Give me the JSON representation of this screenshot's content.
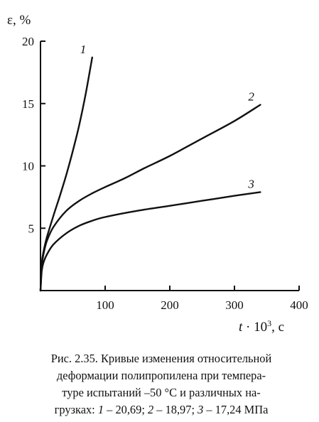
{
  "chart_data": {
    "type": "line",
    "xlabel_prefix": "t",
    "xlabel_rest": " · 10",
    "xlabel_exp": "3",
    "xlabel_unit": ", с",
    "ylabel": "ε, %",
    "xlim": [
      0,
      400
    ],
    "ylim": [
      0,
      20
    ],
    "xticks": [
      100,
      200,
      300,
      400
    ],
    "yticks": [
      5,
      10,
      15,
      20
    ],
    "grid": false,
    "series": [
      {
        "name": "1",
        "x": [
          0,
          2,
          5,
          10,
          20,
          30,
          40,
          50,
          60,
          70,
          80
        ],
        "y": [
          0,
          2.2,
          3.2,
          4.3,
          6.0,
          7.6,
          9.3,
          11.2,
          13.3,
          15.8,
          18.7
        ]
      },
      {
        "name": "2",
        "x": [
          0,
          2,
          5,
          10,
          20,
          40,
          60,
          80,
          100,
          130,
          160,
          200,
          250,
          300,
          340
        ],
        "y": [
          0,
          2.0,
          3.0,
          4.0,
          5.1,
          6.4,
          7.2,
          7.8,
          8.3,
          9.0,
          9.8,
          10.8,
          12.2,
          13.6,
          14.9
        ]
      },
      {
        "name": "3",
        "x": [
          0,
          2,
          5,
          10,
          20,
          40,
          60,
          80,
          100,
          150,
          200,
          250,
          300,
          340
        ],
        "y": [
          0,
          1.6,
          2.3,
          2.9,
          3.7,
          4.6,
          5.2,
          5.6,
          5.9,
          6.4,
          6.8,
          7.2,
          7.6,
          7.9
        ]
      }
    ]
  },
  "caption": {
    "line1": "Рис. 2.35. Кривые изменения относительной",
    "line2": "деформации полипропилена при темпера-",
    "line3": "туре испытаний –50 °С и различных на-",
    "line4_a": "грузках: ",
    "line4_n1": "1",
    "line4_v1": " – 20,69; ",
    "line4_n2": "2",
    "line4_v2": " – 18,97; ",
    "line4_n3": "3",
    "line4_v3": " – 17,24 МПа"
  }
}
